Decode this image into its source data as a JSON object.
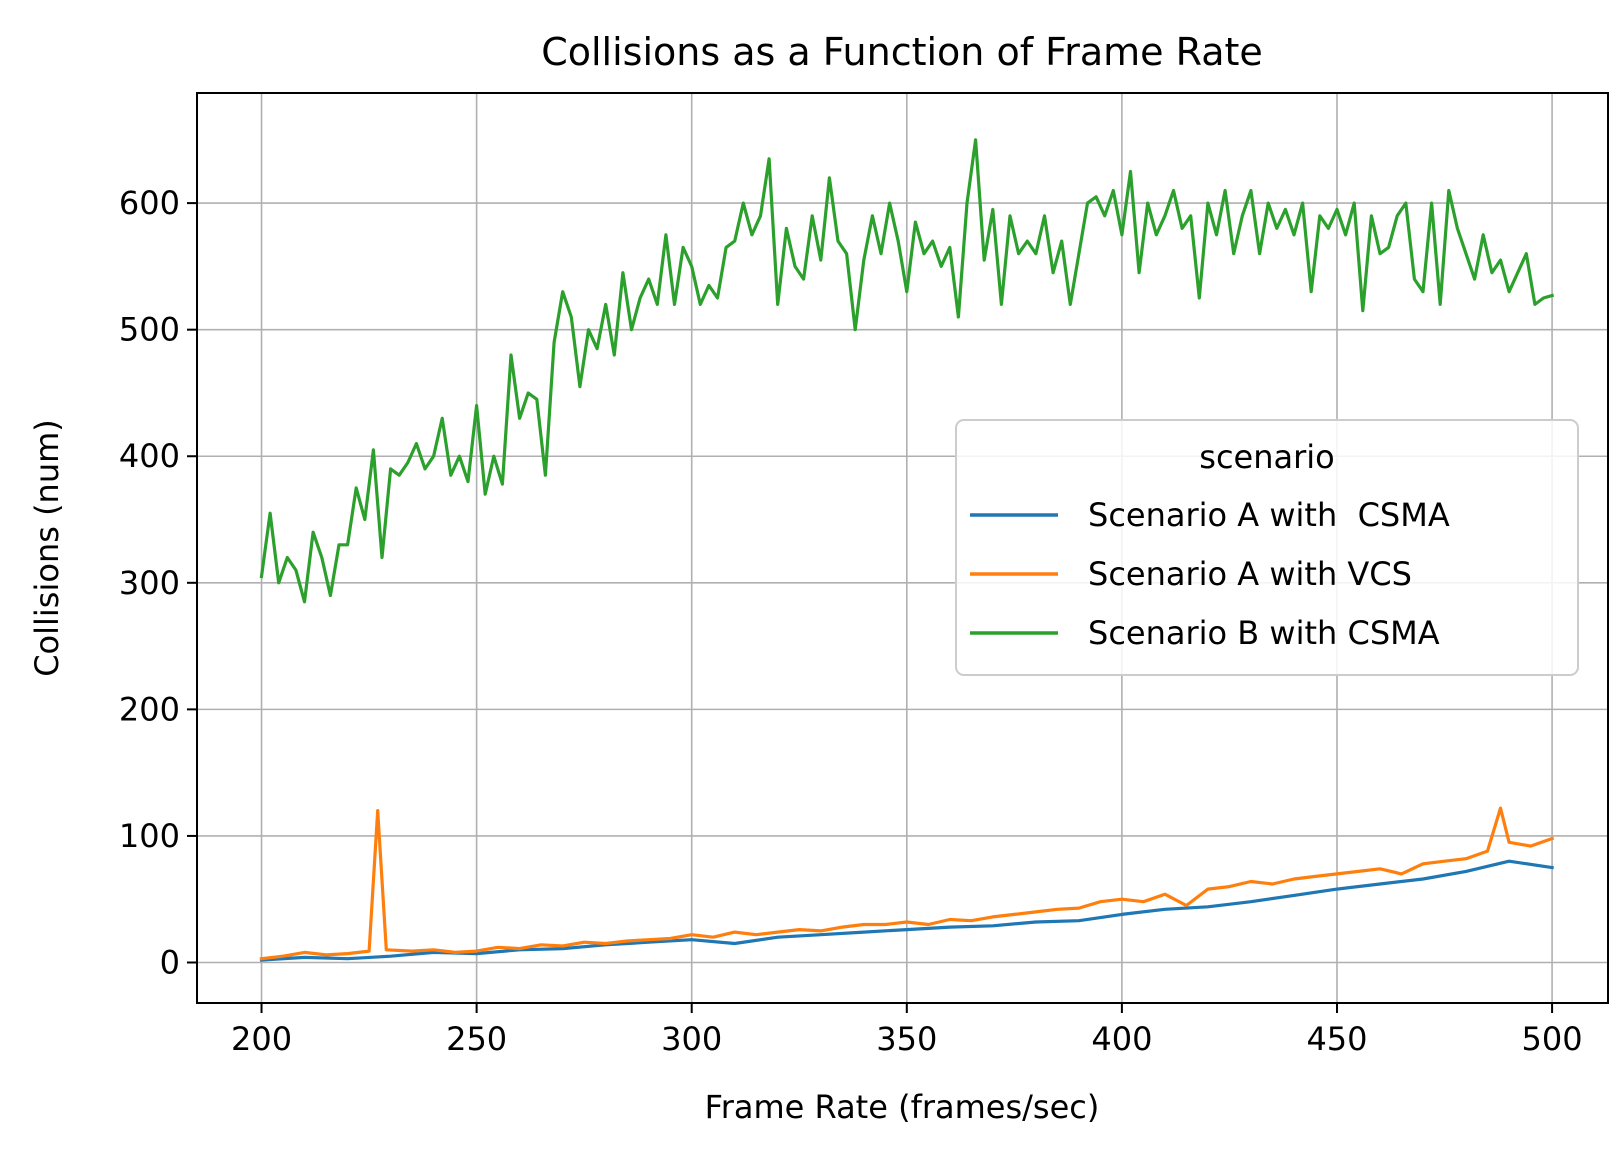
{
  "chart_data": {
    "type": "line",
    "title": "Collisions as a Function of Frame Rate",
    "xlabel": "Frame Rate (frames/sec)",
    "ylabel": "Collisions (num)",
    "xlim": [
      185,
      513
    ],
    "ylim": [
      -32,
      687
    ],
    "xticks": [
      200,
      250,
      300,
      350,
      400,
      450,
      500
    ],
    "yticks": [
      0,
      100,
      200,
      300,
      400,
      500,
      600
    ],
    "grid": true,
    "legend": {
      "title": "scenario",
      "placement": "center-right"
    },
    "series": [
      {
        "name": "Scenario A with  CSMA",
        "color": "#1f77b4",
        "points": [
          [
            200,
            2
          ],
          [
            210,
            4
          ],
          [
            220,
            3
          ],
          [
            230,
            5
          ],
          [
            240,
            8
          ],
          [
            250,
            7
          ],
          [
            260,
            10
          ],
          [
            270,
            11
          ],
          [
            280,
            14
          ],
          [
            290,
            16
          ],
          [
            300,
            18
          ],
          [
            310,
            15
          ],
          [
            320,
            20
          ],
          [
            330,
            22
          ],
          [
            340,
            24
          ],
          [
            350,
            26
          ],
          [
            360,
            28
          ],
          [
            370,
            29
          ],
          [
            380,
            32
          ],
          [
            390,
            33
          ],
          [
            400,
            38
          ],
          [
            410,
            42
          ],
          [
            420,
            44
          ],
          [
            430,
            48
          ],
          [
            440,
            53
          ],
          [
            450,
            58
          ],
          [
            460,
            62
          ],
          [
            470,
            66
          ],
          [
            480,
            72
          ],
          [
            490,
            80
          ],
          [
            500,
            75
          ]
        ]
      },
      {
        "name": "Scenario A with VCS",
        "color": "#ff7f0e",
        "points": [
          [
            200,
            3
          ],
          [
            205,
            5
          ],
          [
            210,
            8
          ],
          [
            215,
            6
          ],
          [
            220,
            7
          ],
          [
            225,
            9
          ],
          [
            227,
            120
          ],
          [
            229,
            10
          ],
          [
            235,
            9
          ],
          [
            240,
            10
          ],
          [
            245,
            8
          ],
          [
            250,
            9
          ],
          [
            255,
            12
          ],
          [
            260,
            11
          ],
          [
            265,
            14
          ],
          [
            270,
            13
          ],
          [
            275,
            16
          ],
          [
            280,
            15
          ],
          [
            285,
            17
          ],
          [
            290,
            18
          ],
          [
            295,
            19
          ],
          [
            300,
            22
          ],
          [
            305,
            20
          ],
          [
            310,
            24
          ],
          [
            315,
            22
          ],
          [
            320,
            24
          ],
          [
            325,
            26
          ],
          [
            330,
            25
          ],
          [
            335,
            28
          ],
          [
            340,
            30
          ],
          [
            345,
            30
          ],
          [
            350,
            32
          ],
          [
            355,
            30
          ],
          [
            360,
            34
          ],
          [
            365,
            33
          ],
          [
            370,
            36
          ],
          [
            375,
            38
          ],
          [
            380,
            40
          ],
          [
            385,
            42
          ],
          [
            390,
            43
          ],
          [
            395,
            48
          ],
          [
            400,
            50
          ],
          [
            405,
            48
          ],
          [
            410,
            54
          ],
          [
            415,
            45
          ],
          [
            420,
            58
          ],
          [
            425,
            60
          ],
          [
            430,
            64
          ],
          [
            435,
            62
          ],
          [
            440,
            66
          ],
          [
            445,
            68
          ],
          [
            450,
            70
          ],
          [
            455,
            72
          ],
          [
            460,
            74
          ],
          [
            465,
            70
          ],
          [
            470,
            78
          ],
          [
            475,
            80
          ],
          [
            480,
            82
          ],
          [
            485,
            88
          ],
          [
            488,
            122
          ],
          [
            490,
            95
          ],
          [
            495,
            92
          ],
          [
            500,
            98
          ]
        ]
      },
      {
        "name": "Scenario B with CSMA",
        "color": "#2ca02c",
        "points": [
          [
            200,
            305
          ],
          [
            202,
            355
          ],
          [
            204,
            300
          ],
          [
            206,
            320
          ],
          [
            208,
            310
          ],
          [
            210,
            285
          ],
          [
            212,
            340
          ],
          [
            214,
            320
          ],
          [
            216,
            290
          ],
          [
            218,
            330
          ],
          [
            220,
            330
          ],
          [
            222,
            375
          ],
          [
            224,
            350
          ],
          [
            226,
            405
          ],
          [
            228,
            320
          ],
          [
            230,
            390
          ],
          [
            232,
            385
          ],
          [
            234,
            395
          ],
          [
            236,
            410
          ],
          [
            238,
            390
          ],
          [
            240,
            400
          ],
          [
            242,
            430
          ],
          [
            244,
            385
          ],
          [
            246,
            400
          ],
          [
            248,
            380
          ],
          [
            250,
            440
          ],
          [
            252,
            370
          ],
          [
            254,
            400
          ],
          [
            256,
            378
          ],
          [
            258,
            480
          ],
          [
            260,
            430
          ],
          [
            262,
            450
          ],
          [
            264,
            445
          ],
          [
            266,
            385
          ],
          [
            268,
            490
          ],
          [
            270,
            530
          ],
          [
            272,
            510
          ],
          [
            274,
            455
          ],
          [
            276,
            500
          ],
          [
            278,
            485
          ],
          [
            280,
            520
          ],
          [
            282,
            480
          ],
          [
            284,
            545
          ],
          [
            286,
            500
          ],
          [
            288,
            525
          ],
          [
            290,
            540
          ],
          [
            292,
            520
          ],
          [
            294,
            575
          ],
          [
            296,
            520
          ],
          [
            298,
            565
          ],
          [
            300,
            550
          ],
          [
            302,
            520
          ],
          [
            304,
            535
          ],
          [
            306,
            525
          ],
          [
            308,
            565
          ],
          [
            310,
            570
          ],
          [
            312,
            600
          ],
          [
            314,
            575
          ],
          [
            316,
            590
          ],
          [
            318,
            635
          ],
          [
            320,
            520
          ],
          [
            322,
            580
          ],
          [
            324,
            550
          ],
          [
            326,
            540
          ],
          [
            328,
            590
          ],
          [
            330,
            555
          ],
          [
            332,
            620
          ],
          [
            334,
            570
          ],
          [
            336,
            560
          ],
          [
            338,
            500
          ],
          [
            340,
            555
          ],
          [
            342,
            590
          ],
          [
            344,
            560
          ],
          [
            346,
            600
          ],
          [
            348,
            570
          ],
          [
            350,
            530
          ],
          [
            352,
            585
          ],
          [
            354,
            560
          ],
          [
            356,
            570
          ],
          [
            358,
            550
          ],
          [
            360,
            565
          ],
          [
            362,
            510
          ],
          [
            364,
            600
          ],
          [
            366,
            650
          ],
          [
            368,
            555
          ],
          [
            370,
            595
          ],
          [
            372,
            520
          ],
          [
            374,
            590
          ],
          [
            376,
            560
          ],
          [
            378,
            570
          ],
          [
            380,
            560
          ],
          [
            382,
            590
          ],
          [
            384,
            545
          ],
          [
            386,
            570
          ],
          [
            388,
            520
          ],
          [
            390,
            560
          ],
          [
            392,
            600
          ],
          [
            394,
            605
          ],
          [
            396,
            590
          ],
          [
            398,
            610
          ],
          [
            400,
            575
          ],
          [
            402,
            625
          ],
          [
            404,
            545
          ],
          [
            406,
            600
          ],
          [
            408,
            575
          ],
          [
            410,
            590
          ],
          [
            412,
            610
          ],
          [
            414,
            580
          ],
          [
            416,
            590
          ],
          [
            418,
            525
          ],
          [
            420,
            600
          ],
          [
            422,
            575
          ],
          [
            424,
            610
          ],
          [
            426,
            560
          ],
          [
            428,
            590
          ],
          [
            430,
            610
          ],
          [
            432,
            560
          ],
          [
            434,
            600
          ],
          [
            436,
            580
          ],
          [
            438,
            595
          ],
          [
            440,
            575
          ],
          [
            442,
            600
          ],
          [
            444,
            530
          ],
          [
            446,
            590
          ],
          [
            448,
            580
          ],
          [
            450,
            595
          ],
          [
            452,
            575
          ],
          [
            454,
            600
          ],
          [
            456,
            515
          ],
          [
            458,
            590
          ],
          [
            460,
            560
          ],
          [
            462,
            565
          ],
          [
            464,
            590
          ],
          [
            466,
            600
          ],
          [
            468,
            540
          ],
          [
            470,
            530
          ],
          [
            472,
            600
          ],
          [
            474,
            520
          ],
          [
            476,
            610
          ],
          [
            478,
            580
          ],
          [
            480,
            560
          ],
          [
            482,
            540
          ],
          [
            484,
            575
          ],
          [
            486,
            545
          ],
          [
            488,
            555
          ],
          [
            490,
            530
          ],
          [
            492,
            545
          ],
          [
            494,
            560
          ],
          [
            496,
            520
          ],
          [
            498,
            525
          ],
          [
            500,
            527
          ]
        ]
      }
    ]
  }
}
